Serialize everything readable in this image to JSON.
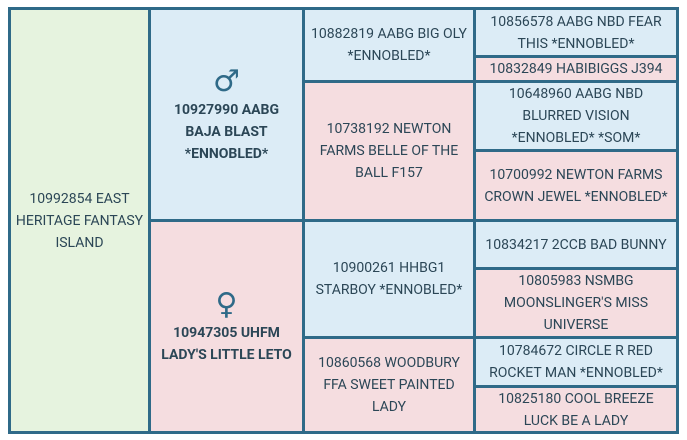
{
  "subject": "10992854 EAST HERITAGE FANTASY ISLAND",
  "sire": {
    "symbol": "♂",
    "name": "10927990 AABG BAJA BLAST *ENNOBLED*"
  },
  "dam": {
    "symbol": "♀",
    "name": "10947305 UHFM LADY'S LITTLE LETO"
  },
  "grandparents": [
    "10882819 AABG BIG OLY *ENNOBLED*",
    "10738192 NEWTON FARMS BELLE OF THE BALL F157",
    "10900261 HHBG1 STARBOY *ENNOBLED*",
    "10860568 WOODBURY FFA SWEET PAINTED LADY"
  ],
  "great_grandparents": [
    "10856578 AABG NBD FEAR THIS *ENNOBLED*",
    "10832849 HABIBIGGS J394",
    "10648960 AABG NBD BLURRED VISION *ENNOBLED* *SOM*",
    "10700992 NEWTON FARMS CROWN JEWEL *ENNOBLED*",
    "10834217 2CCB BAD BUNNY",
    "10805983 NSMBG MOONSLINGER'S MISS UNIVERSE",
    "10784672 CIRCLE R RED ROCKET MAN *ENNOBLED*",
    "10825180 COOL BREEZE LUCK BE A LADY"
  ]
}
